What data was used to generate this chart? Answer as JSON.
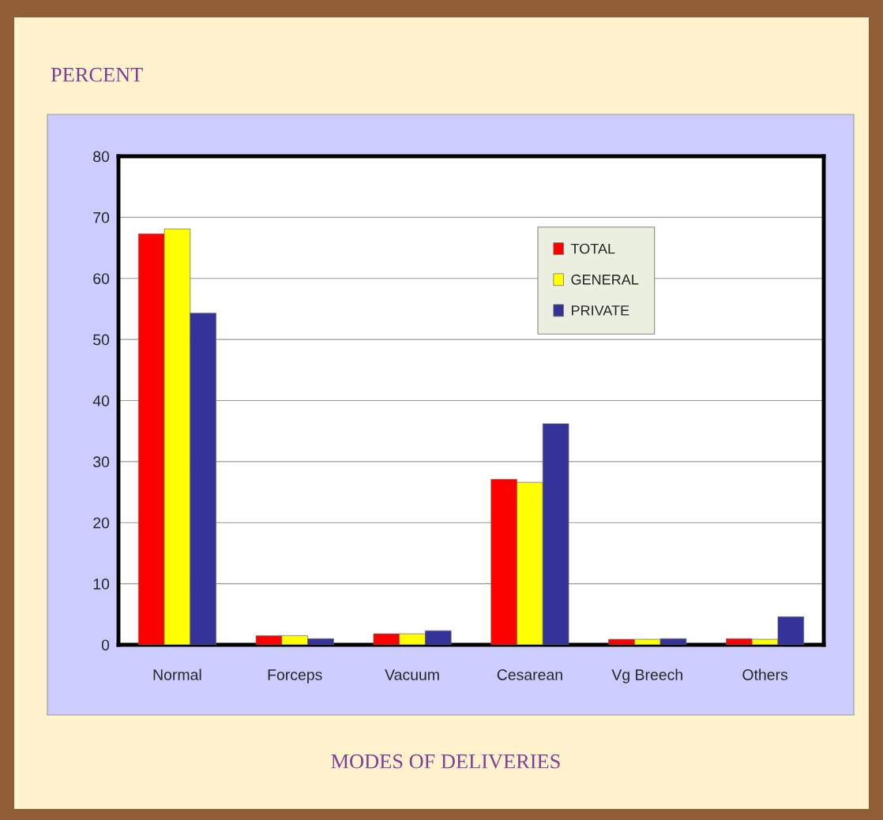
{
  "chart_data": {
    "type": "bar",
    "ylabel": "PERCENT",
    "xlabel": "MODES OF DELIVERIES",
    "categories": [
      "Normal",
      "Forceps",
      "Vacuum",
      "Cesarean",
      "Vg Breech",
      "Others"
    ],
    "series": [
      {
        "name": "TOTAL",
        "color": "#ff0000",
        "values": [
          67.3,
          1.5,
          1.8,
          27.1,
          0.9,
          1.0
        ]
      },
      {
        "name": "GENERAL",
        "color": "#ffff00",
        "values": [
          68.1,
          1.5,
          1.8,
          26.6,
          0.9,
          0.9
        ]
      },
      {
        "name": "PRIVATE",
        "color": "#333399",
        "values": [
          54.3,
          1.0,
          2.3,
          36.2,
          1.0,
          4.6
        ]
      }
    ],
    "ylim": [
      0,
      80
    ],
    "yticks": [
      0,
      10,
      20,
      30,
      40,
      50,
      60,
      70,
      80
    ],
    "grid": "y",
    "legend": "top right"
  }
}
